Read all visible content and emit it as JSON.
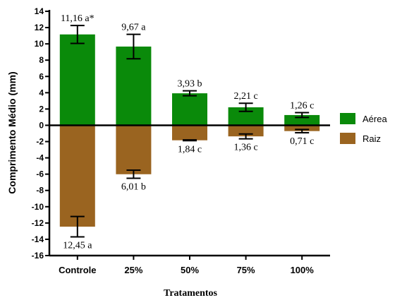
{
  "chart_data": {
    "type": "bar",
    "categories": [
      "Controle",
      "25%",
      "50%",
      "75%",
      "100%"
    ],
    "series": [
      {
        "name": "Aérea",
        "color": "#0a8a0a",
        "values": [
          11.16,
          9.67,
          3.93,
          2.21,
          1.26
        ],
        "errors": [
          1.1,
          1.5,
          0.3,
          0.5,
          0.3
        ],
        "labels": [
          "11,16 a*",
          "9,67 a",
          "3,93 b",
          "2,21 c",
          "1,26 c"
        ]
      },
      {
        "name": "Raiz",
        "color": "#9a6420",
        "values": [
          -12.45,
          -6.01,
          -1.84,
          -1.36,
          -0.71
        ],
        "errors": [
          1.25,
          0.5,
          0.05,
          0.3,
          0.2
        ],
        "labels": [
          "12,45 a",
          "6,01 b",
          "1,84 c",
          "1,36 c",
          "0,71 c"
        ]
      }
    ],
    "ylabel": "Comprimento Médio (mm)",
    "xlabel": "Tratamentos",
    "ylim": [
      -16,
      14
    ],
    "yticks": [
      "-16",
      "-14",
      "-12",
      "-10",
      "-8",
      "-6",
      "-4",
      "-2",
      "0",
      "2",
      "4",
      "6",
      "8",
      "10",
      "12",
      "14"
    ],
    "legend_position": "right",
    "grid": false
  }
}
